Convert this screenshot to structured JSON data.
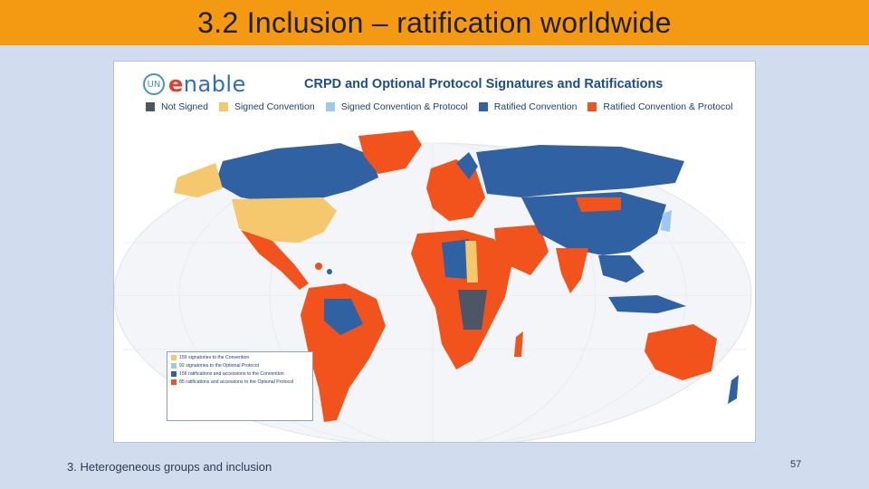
{
  "slide": {
    "title": "3.2 Inclusion – ratification worldwide",
    "footer": "3. Heterogeneous groups and inclusion",
    "page_number": "57"
  },
  "colors": {
    "title_bar": "#f39a12",
    "background": "#d2dcef",
    "not_signed": "#4d5566",
    "signed_convention": "#f5c86e",
    "signed_convention_protocol": "#9cc9ee",
    "ratified_convention": "#2f61a3",
    "ratified_convention_protocol": "#f2531c",
    "ocean": "#f3f5f8"
  },
  "map": {
    "logo_un": "UN",
    "logo_text_e": "e",
    "logo_text_rest": "nable",
    "title": "CRPD and Optional Protocol  Signatures and Ratifications",
    "legend": [
      {
        "label": "Not Signed",
        "color": "#4d5566"
      },
      {
        "label": "Signed Convention",
        "color": "#f5c86e"
      },
      {
        "label": "Signed Convention & Protocol",
        "color": "#9cc9ee"
      },
      {
        "label": "Ratified Convention",
        "color": "#2f61a3"
      },
      {
        "label": "Ratified Convention & Protocol",
        "color": "#f2531c"
      }
    ],
    "stats": [
      {
        "label": "159 signatories to the Convention",
        "color": "#f5c86e"
      },
      {
        "label": "92 signatories to the Optional Protocol",
        "color": "#9cc9ee"
      },
      {
        "label": "156 ratifications and accessions to the Convention",
        "color": "#2f61a3"
      },
      {
        "label": "85 ratifications and accessions to the Optional Protocol",
        "color": "#f2531c"
      }
    ]
  }
}
